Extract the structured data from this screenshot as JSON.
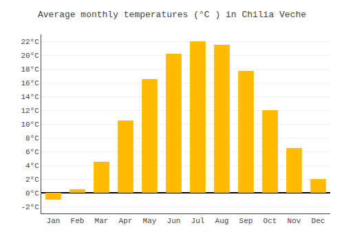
{
  "chart_data": {
    "type": "bar",
    "title": "Average monthly temperatures (°C ) in Chilia Veche",
    "categories": [
      "Jan",
      "Feb",
      "Mar",
      "Apr",
      "May",
      "Jun",
      "Jul",
      "Aug",
      "Sep",
      "Oct",
      "Nov",
      "Dec"
    ],
    "values": [
      -1.0,
      0.5,
      4.5,
      10.5,
      16.5,
      20.2,
      22.0,
      21.5,
      17.7,
      12.0,
      6.5,
      2.0
    ],
    "color": "#FFBB00",
    "ylim": [
      -3,
      23
    ],
    "yticks": [
      {
        "value": -2,
        "label": "-2°C"
      },
      {
        "value": 0,
        "label": "0°C"
      },
      {
        "value": 2,
        "label": "2°C"
      },
      {
        "value": 4,
        "label": "4°C"
      },
      {
        "value": 6,
        "label": "6°C"
      },
      {
        "value": 8,
        "label": "8°C"
      },
      {
        "value": 10,
        "label": "10°C"
      },
      {
        "value": 12,
        "label": "12°C"
      },
      {
        "value": 14,
        "label": "14°C"
      },
      {
        "value": 16,
        "label": "16°C"
      },
      {
        "value": 18,
        "label": "18°C"
      },
      {
        "value": 20,
        "label": "20°C"
      },
      {
        "value": 22,
        "label": "22°C"
      }
    ],
    "grid": true
  }
}
